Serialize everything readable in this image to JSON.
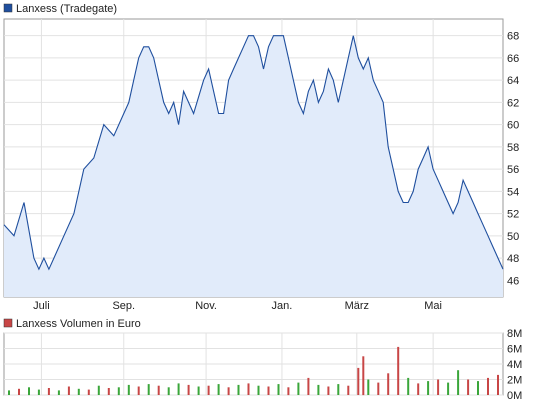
{
  "chart_data": [
    {
      "type": "area",
      "title": "",
      "legend": {
        "label": "Lanxess (Tradegate)",
        "color": "#1f4f9e",
        "position": "top-left"
      },
      "line_color": "#1f4f9e",
      "fill_color": "#e1ebfa",
      "grid": true,
      "xlabel": "",
      "ylabel": "",
      "ylim": [
        44.5,
        69.5
      ],
      "y_ticks": [
        46,
        48,
        50,
        52,
        54,
        56,
        58,
        60,
        62,
        64,
        66,
        68
      ],
      "x_range": [
        0,
        100
      ],
      "x_ticks": [
        {
          "label": "Juli",
          "x": 7.5
        },
        {
          "label": "Sep.",
          "x": 24.0
        },
        {
          "label": "Nov.",
          "x": 40.5
        },
        {
          "label": "Jan.",
          "x": 55.7
        },
        {
          "label": "März",
          "x": 70.7
        },
        {
          "label": "Mai",
          "x": 86.0
        }
      ],
      "x": [
        0,
        2,
        4,
        6,
        7,
        8,
        9,
        10,
        12,
        14,
        16,
        18,
        20,
        22,
        24,
        25,
        26,
        27,
        28,
        29,
        30,
        31,
        32,
        33,
        34,
        35,
        36,
        38,
        40,
        41,
        42,
        43,
        44,
        45,
        46,
        47,
        48,
        49,
        50,
        51,
        52,
        53,
        54,
        56,
        57,
        58,
        59,
        60,
        61,
        62,
        63,
        64,
        65,
        66,
        67,
        68,
        69,
        70,
        71,
        72,
        73,
        74,
        75,
        76,
        77,
        78,
        79,
        80,
        81,
        82,
        83,
        84,
        85,
        86,
        87,
        88,
        89,
        90,
        91,
        92,
        93,
        94,
        95,
        96,
        97,
        98,
        99,
        100
      ],
      "values": [
        51,
        50,
        53,
        48,
        47,
        48,
        47,
        48,
        50,
        52,
        56,
        57,
        60,
        59,
        61,
        62,
        64,
        66,
        67,
        67,
        66,
        64,
        62,
        61,
        62,
        60,
        63,
        61,
        64,
        65,
        63,
        61,
        61,
        64,
        65,
        66,
        67,
        68,
        68,
        67,
        65,
        67,
        68,
        68,
        66,
        64,
        62,
        61,
        63,
        64,
        62,
        63,
        65,
        64,
        62,
        64,
        66,
        68,
        66,
        65,
        66,
        64,
        63,
        62,
        58,
        56,
        54,
        53,
        53,
        54,
        56,
        57,
        58,
        56,
        55,
        54,
        53,
        52,
        53,
        55,
        54,
        53,
        52,
        51,
        50,
        49,
        48,
        47
      ]
    },
    {
      "type": "bar",
      "title": "",
      "legend": {
        "label": "Lanxess Volumen in Euro",
        "color": "#c84646",
        "position": "top-left"
      },
      "ylim": [
        0,
        8
      ],
      "y_ticks": [
        {
          "label": "0M",
          "value": 0
        },
        {
          "label": "2M",
          "value": 2
        },
        {
          "label": "4M",
          "value": 4
        },
        {
          "label": "6M",
          "value": 6
        },
        {
          "label": "8M",
          "value": 8
        }
      ],
      "unit": "M",
      "grid": true,
      "up_color": "#3aa63a",
      "down_color": "#c84646",
      "x_range": [
        0,
        100
      ],
      "x": [
        1,
        3,
        5,
        7,
        9,
        11,
        13,
        15,
        17,
        19,
        21,
        23,
        25,
        27,
        29,
        31,
        33,
        35,
        37,
        39,
        41,
        43,
        45,
        47,
        49,
        51,
        53,
        55,
        57,
        59,
        61,
        63,
        65,
        67,
        69,
        71,
        72,
        73,
        75,
        77,
        79,
        81,
        83,
        85,
        87,
        89,
        91,
        93,
        95,
        97,
        99
      ],
      "values": [
        0.6,
        0.8,
        1.0,
        0.7,
        0.9,
        0.6,
        1.1,
        0.8,
        0.7,
        1.2,
        0.9,
        1.0,
        1.3,
        1.1,
        1.4,
        1.2,
        1.0,
        1.5,
        1.3,
        1.1,
        1.2,
        1.4,
        1.0,
        1.3,
        1.5,
        1.2,
        1.1,
        1.4,
        1.0,
        1.6,
        2.2,
        1.3,
        1.1,
        1.4,
        1.2,
        3.5,
        5.0,
        2.0,
        1.6,
        2.8,
        6.2,
        2.2,
        1.5,
        1.8,
        2.0,
        1.6,
        3.2,
        2.0,
        1.8,
        2.2,
        2.6
      ],
      "direction": [
        "u",
        "d",
        "u",
        "u",
        "d",
        "u",
        "d",
        "u",
        "d",
        "u",
        "d",
        "u",
        "u",
        "d",
        "u",
        "d",
        "u",
        "u",
        "d",
        "u",
        "d",
        "u",
        "d",
        "u",
        "d",
        "u",
        "d",
        "u",
        "d",
        "u",
        "d",
        "u",
        "d",
        "u",
        "d",
        "d",
        "d",
        "u",
        "d",
        "d",
        "d",
        "u",
        "d",
        "u",
        "d",
        "u",
        "u",
        "d",
        "u",
        "d",
        "d"
      ]
    }
  ]
}
